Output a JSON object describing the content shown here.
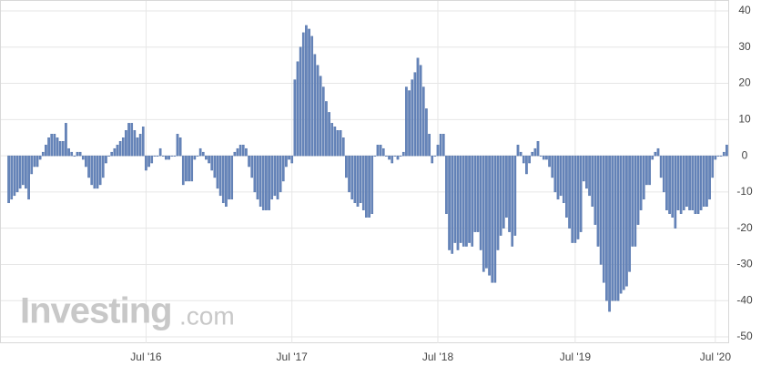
{
  "chart_data": {
    "type": "bar",
    "watermark": "Investing",
    "watermark_suffix": ".com",
    "categories": [
      null,
      null,
      null,
      null,
      null,
      null,
      null,
      null,
      null,
      null,
      null,
      null,
      null,
      null,
      null,
      null,
      null,
      null,
      null,
      null,
      null,
      null,
      null,
      null,
      null,
      null,
      null,
      null,
      null,
      null,
      null,
      null,
      null,
      null,
      null,
      null,
      null,
      null,
      null,
      null,
      null,
      null,
      null,
      null,
      null,
      null,
      null,
      null,
      "Jul '16",
      null,
      null,
      null,
      null,
      null,
      null,
      null,
      null,
      null,
      null,
      null,
      null,
      null,
      null,
      null,
      null,
      null,
      null,
      null,
      null,
      null,
      null,
      null,
      null,
      null,
      null,
      null,
      null,
      null,
      null,
      null,
      null,
      null,
      null,
      null,
      null,
      null,
      null,
      null,
      null,
      null,
      null,
      null,
      null,
      null,
      null,
      null,
      null,
      null,
      null,
      "Jul '17",
      null,
      null,
      null,
      null,
      null,
      null,
      null,
      null,
      null,
      null,
      null,
      null,
      null,
      null,
      null,
      null,
      null,
      null,
      null,
      null,
      null,
      null,
      null,
      null,
      null,
      null,
      null,
      null,
      null,
      null,
      null,
      null,
      null,
      null,
      null,
      null,
      null,
      null,
      null,
      null,
      null,
      null,
      null,
      null,
      null,
      null,
      null,
      null,
      null,
      null,
      "Jul '18",
      null,
      null,
      null,
      null,
      null,
      null,
      null,
      null,
      null,
      null,
      null,
      null,
      null,
      null,
      null,
      null,
      null,
      null,
      null,
      null,
      null,
      null,
      null,
      null,
      null,
      null,
      null,
      null,
      null,
      null,
      null,
      null,
      null,
      null,
      null,
      null,
      null,
      null,
      null,
      null,
      null,
      null,
      null,
      null,
      null,
      null,
      null,
      "Jul '19",
      null,
      null,
      null,
      null,
      null,
      null,
      null,
      null,
      null,
      null,
      null,
      null,
      null,
      null,
      null,
      null,
      null,
      null,
      null,
      null,
      null,
      null,
      null,
      null,
      null,
      null,
      null,
      null,
      null,
      null,
      null,
      null,
      null,
      null,
      null,
      null,
      null,
      null,
      null,
      null,
      null,
      null,
      null,
      null,
      null,
      null,
      null,
      null,
      "Jul '20",
      null,
      null,
      null,
      null
    ],
    "values": [
      -13,
      -12,
      -11,
      -10,
      -9,
      -8,
      -9,
      -12,
      -5,
      -3,
      -3,
      -1,
      1,
      3,
      5,
      6,
      6,
      5,
      4,
      4,
      9,
      2,
      1,
      0,
      1,
      1,
      -1,
      -3,
      -6,
      -8,
      -9,
      -9,
      -8,
      -6,
      -2,
      0,
      1,
      2,
      3,
      4,
      5,
      7,
      9,
      9,
      7,
      5,
      6,
      8,
      -4,
      -3,
      -2,
      0,
      0,
      2,
      0,
      -1,
      -1,
      0,
      0,
      6,
      5,
      -8,
      -7,
      -7,
      -7,
      -1,
      0,
      2,
      1,
      -1,
      -2,
      -4,
      -6,
      -9,
      -11,
      -13,
      -14,
      -12,
      -12,
      1,
      2,
      3,
      3,
      2,
      -3,
      -6,
      -10,
      -12,
      -14,
      -15,
      -15,
      -15,
      -12,
      -11,
      -12,
      -10,
      -7,
      -3,
      -1,
      -2,
      21,
      26,
      30,
      34,
      36,
      35,
      33,
      28,
      25,
      22,
      19,
      15,
      12,
      9,
      8,
      7,
      7,
      5,
      -6,
      -10,
      -12,
      -13,
      -14,
      -13,
      -15,
      -17,
      -17,
      -16,
      0,
      3,
      3,
      2,
      0,
      -1,
      -2,
      0,
      -1,
      0,
      1,
      19,
      18,
      21,
      23,
      27,
      25,
      19,
      13,
      6,
      -2,
      0,
      3,
      6,
      6,
      -16,
      -26,
      -27,
      -24,
      -26,
      -24,
      -25,
      -25,
      -24,
      -25,
      -21,
      -21,
      -26,
      -32,
      -31,
      -33,
      -35,
      -35,
      -26,
      -22,
      -20,
      -17,
      -21,
      -25,
      -22,
      3,
      1,
      -2,
      -5,
      -2,
      1,
      2,
      4,
      0,
      -1,
      -1,
      -3,
      -6,
      -10,
      -12,
      -11,
      -13,
      -17,
      -20,
      -24,
      -24,
      -23,
      -21,
      -7,
      -9,
      -11,
      -14,
      -19,
      -25,
      -30,
      -35,
      -40,
      -43,
      -40,
      -40,
      -40,
      -38,
      -37,
      -36,
      -32,
      -25,
      -25,
      -19,
      -15,
      -12,
      -8,
      -8,
      -1,
      1,
      2,
      -6,
      -10,
      -15,
      -16,
      -17,
      -20,
      -15,
      -16,
      -15,
      -14,
      -15,
      -15,
      -16,
      -16,
      -15,
      -14,
      -14,
      -12,
      -6,
      -1,
      0,
      0,
      1,
      3
    ],
    "color": "#6685ba",
    "ylim": [
      -50,
      40
    ],
    "yticks": [
      40,
      30,
      20,
      10,
      0,
      -10,
      -20,
      -30,
      -40,
      -50
    ],
    "grid": true,
    "y_axis_side": "right"
  }
}
